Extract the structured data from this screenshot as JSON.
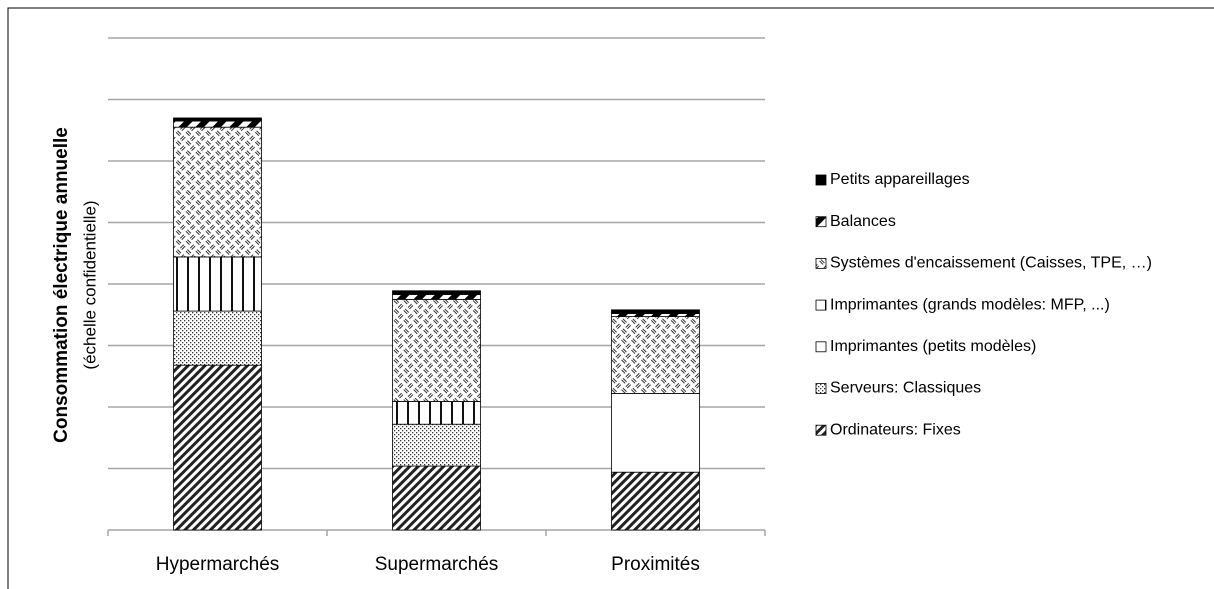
{
  "chart_data": {
    "type": "stacked_bar",
    "ylabel": "Consommation électrique annuelle",
    "ylabel_note": "(échelle confidentielle)",
    "categories": [
      "Hypermarchés",
      "Supermarchés",
      "Proximités"
    ],
    "ylim": [
      0,
      8
    ],
    "yticks": [
      0,
      1,
      2,
      3,
      4,
      5,
      6,
      7,
      8
    ],
    "grid": true,
    "series": [
      {
        "name": "Ordinateurs: Fixes",
        "pattern": "hatch",
        "values": [
          2.68,
          1.04,
          0.94
        ]
      },
      {
        "name": "Serveurs: Classiques",
        "pattern": "dots",
        "values": [
          0.88,
          0.68,
          0
        ]
      },
      {
        "name": "Imprimantes (petits modèles)",
        "pattern": "white",
        "values": [
          0,
          0,
          1.28
        ]
      },
      {
        "name": "Imprimantes (grands modèles: MFP, ...)",
        "pattern": "vlines",
        "values": [
          0.88,
          0.37,
          0
        ]
      },
      {
        "name": "Systèmes d'encaissement (Caisses, TPE, …)",
        "pattern": "weave",
        "values": [
          2.11,
          1.66,
          1.25
        ]
      },
      {
        "name": "Balances",
        "pattern": "wide",
        "values": [
          0.1,
          0.08,
          0.05
        ]
      },
      {
        "name": "Petits appareillages",
        "pattern": "solid",
        "values": [
          0.05,
          0.06,
          0.06
        ]
      }
    ]
  }
}
